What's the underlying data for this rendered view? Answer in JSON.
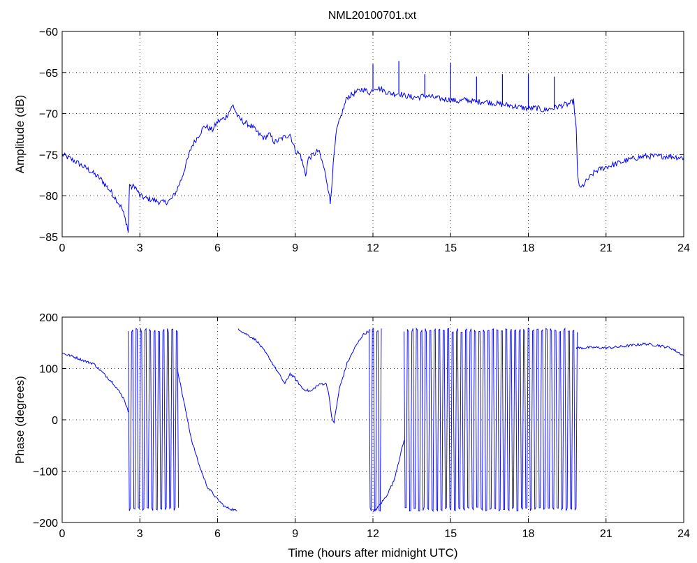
{
  "figure": {
    "title": "NML20100701.txt",
    "line_color": "#0000ff"
  },
  "chart_data": [
    {
      "type": "line",
      "title": "NML20100701.txt",
      "xlabel": "",
      "ylabel": "Amplitude (dB)",
      "xlim": [
        0,
        24
      ],
      "ylim": [
        -85,
        -60
      ],
      "xticks": [
        "0",
        "3",
        "6",
        "9",
        "12",
        "15",
        "18",
        "21",
        "24"
      ],
      "yticks": [
        "-85",
        "-80",
        "-75",
        "-70",
        "-65",
        "-60"
      ],
      "grid": true,
      "series": [
        {
          "color": "#0000ff",
          "x": [
            0,
            0.5,
            1.0,
            1.5,
            2.0,
            2.3,
            2.5,
            2.55,
            2.6,
            2.65,
            2.8,
            3.0,
            3.2,
            3.5,
            3.8,
            4.0,
            4.2,
            4.4,
            4.6,
            4.8,
            5.0,
            5.3,
            5.5,
            5.8,
            6.0,
            6.3,
            6.6,
            6.8,
            7.0,
            7.3,
            7.6,
            7.8,
            8.0,
            8.2,
            8.5,
            8.8,
            9.0,
            9.2,
            9.4,
            9.5,
            9.7,
            9.9,
            10.1,
            10.2,
            10.3,
            10.35,
            10.4,
            10.5,
            10.6,
            10.8,
            11.0,
            11.3,
            11.6,
            11.9,
            12.0,
            12.1,
            12.3,
            12.6,
            12.9,
            13.0,
            13.2,
            13.5,
            13.8,
            14.0,
            14.3,
            14.6,
            15.0,
            15.3,
            15.6,
            16.0,
            16.3,
            16.6,
            17.0,
            17.3,
            17.6,
            18.0,
            18.3,
            18.6,
            19.0,
            19.3,
            19.6,
            19.75,
            19.85,
            19.9,
            20.0,
            20.3,
            20.6,
            21.0,
            21.5,
            22.0,
            22.5,
            23.0,
            23.5,
            24.0
          ],
          "y": [
            -75.0,
            -75.8,
            -76.8,
            -78.0,
            -80.0,
            -81.5,
            -83.5,
            -84.5,
            -78.5,
            -79.0,
            -78.8,
            -80.0,
            -80.3,
            -80.5,
            -80.8,
            -80.8,
            -80.5,
            -79.5,
            -78.0,
            -76.0,
            -74.0,
            -72.5,
            -71.5,
            -72.0,
            -71.0,
            -70.5,
            -69.0,
            -70.5,
            -71.0,
            -71.5,
            -72.5,
            -73.0,
            -72.5,
            -73.5,
            -73.0,
            -72.5,
            -74.5,
            -75.0,
            -77.5,
            -75.5,
            -75.0,
            -74.5,
            -76.5,
            -78.0,
            -79.5,
            -81.0,
            -79.0,
            -75.0,
            -72.0,
            -70.0,
            -68.0,
            -67.5,
            -67.0,
            -67.5,
            -67.0,
            -66.8,
            -67.0,
            -67.5,
            -67.6,
            -67.5,
            -67.8,
            -68.0,
            -68.0,
            -67.8,
            -68.0,
            -68.2,
            -68.3,
            -68.5,
            -68.3,
            -68.6,
            -68.5,
            -68.7,
            -68.9,
            -69.0,
            -69.2,
            -69.4,
            -69.3,
            -69.6,
            -69.3,
            -69.0,
            -68.8,
            -68.5,
            -72.0,
            -77.5,
            -79.2,
            -78.0,
            -77.0,
            -76.5,
            -76.0,
            -75.5,
            -75.2,
            -75.2,
            -75.2,
            -75.4
          ]
        }
      ],
      "spikes": [
        {
          "x": 12.0,
          "y": -64.0
        },
        {
          "x": 13.0,
          "y": -63.6
        },
        {
          "x": 14.0,
          "y": -65.2
        },
        {
          "x": 15.0,
          "y": -63.8
        },
        {
          "x": 16.0,
          "y": -65.5
        },
        {
          "x": 17.0,
          "y": -65.2
        },
        {
          "x": 18.0,
          "y": -65.2
        },
        {
          "x": 19.0,
          "y": -65.5
        }
      ]
    },
    {
      "type": "line",
      "title": "",
      "xlabel": "Time (hours after midnight UTC)",
      "ylabel": "Phase (degrees)",
      "xlim": [
        0,
        24
      ],
      "ylim": [
        -200,
        200
      ],
      "xticks": [
        "0",
        "3",
        "6",
        "9",
        "12",
        "15",
        "18",
        "21",
        "24"
      ],
      "yticks": [
        "-200",
        "-100",
        "0",
        "100",
        "200"
      ],
      "grid": true,
      "series": [
        {
          "color": "#0000ff",
          "x": [
            0,
            0.5,
            1.0,
            1.2,
            1.5,
            2.0,
            2.4,
            2.55
          ],
          "y": [
            130,
            122,
            112,
            110,
            95,
            70,
            40,
            15
          ]
        },
        {
          "color": "#0000ff",
          "x": [
            4.45,
            4.6,
            4.8,
            5.0,
            5.3,
            5.6,
            6.0,
            6.3,
            6.6,
            6.75
          ],
          "y": [
            100,
            60,
            10,
            -40,
            -90,
            -130,
            -155,
            -170,
            -175,
            -178
          ]
        },
        {
          "color": "#0000ff",
          "x": [
            6.8,
            7.0,
            7.5,
            8.0,
            8.3,
            8.6,
            8.8,
            9.0,
            9.3,
            9.6,
            9.8,
            10.0,
            10.2,
            10.3,
            10.4,
            10.5,
            10.7,
            11.0,
            11.3,
            11.6,
            11.9
          ],
          "y": [
            178,
            170,
            155,
            120,
            95,
            70,
            90,
            80,
            60,
            55,
            65,
            70,
            70,
            50,
            5,
            -5,
            60,
            110,
            140,
            165,
            175
          ]
        },
        {
          "color": "#0000ff",
          "x": [
            12.0,
            12.2,
            12.5,
            12.8,
            13.0,
            13.2
          ],
          "y": [
            -180,
            -170,
            -150,
            -120,
            -80,
            -40
          ]
        },
        {
          "color": "#0000ff",
          "x": [
            19.85,
            20.0,
            20.5,
            21.0,
            21.5,
            22.0,
            22.5,
            23.0,
            23.5,
            24.0
          ],
          "y": [
            140,
            140,
            141,
            140,
            142,
            145,
            148,
            145,
            140,
            125
          ]
        }
      ],
      "wrap_bands": [
        {
          "x": [
            2.55,
            4.45
          ],
          "ymin": -178,
          "ymax": 178
        },
        {
          "x": [
            11.85,
            12.35
          ],
          "ymin": -178,
          "ymax": 178
        },
        {
          "x": [
            13.2,
            19.85
          ],
          "ymin": -178,
          "ymax": 178
        }
      ]
    }
  ]
}
